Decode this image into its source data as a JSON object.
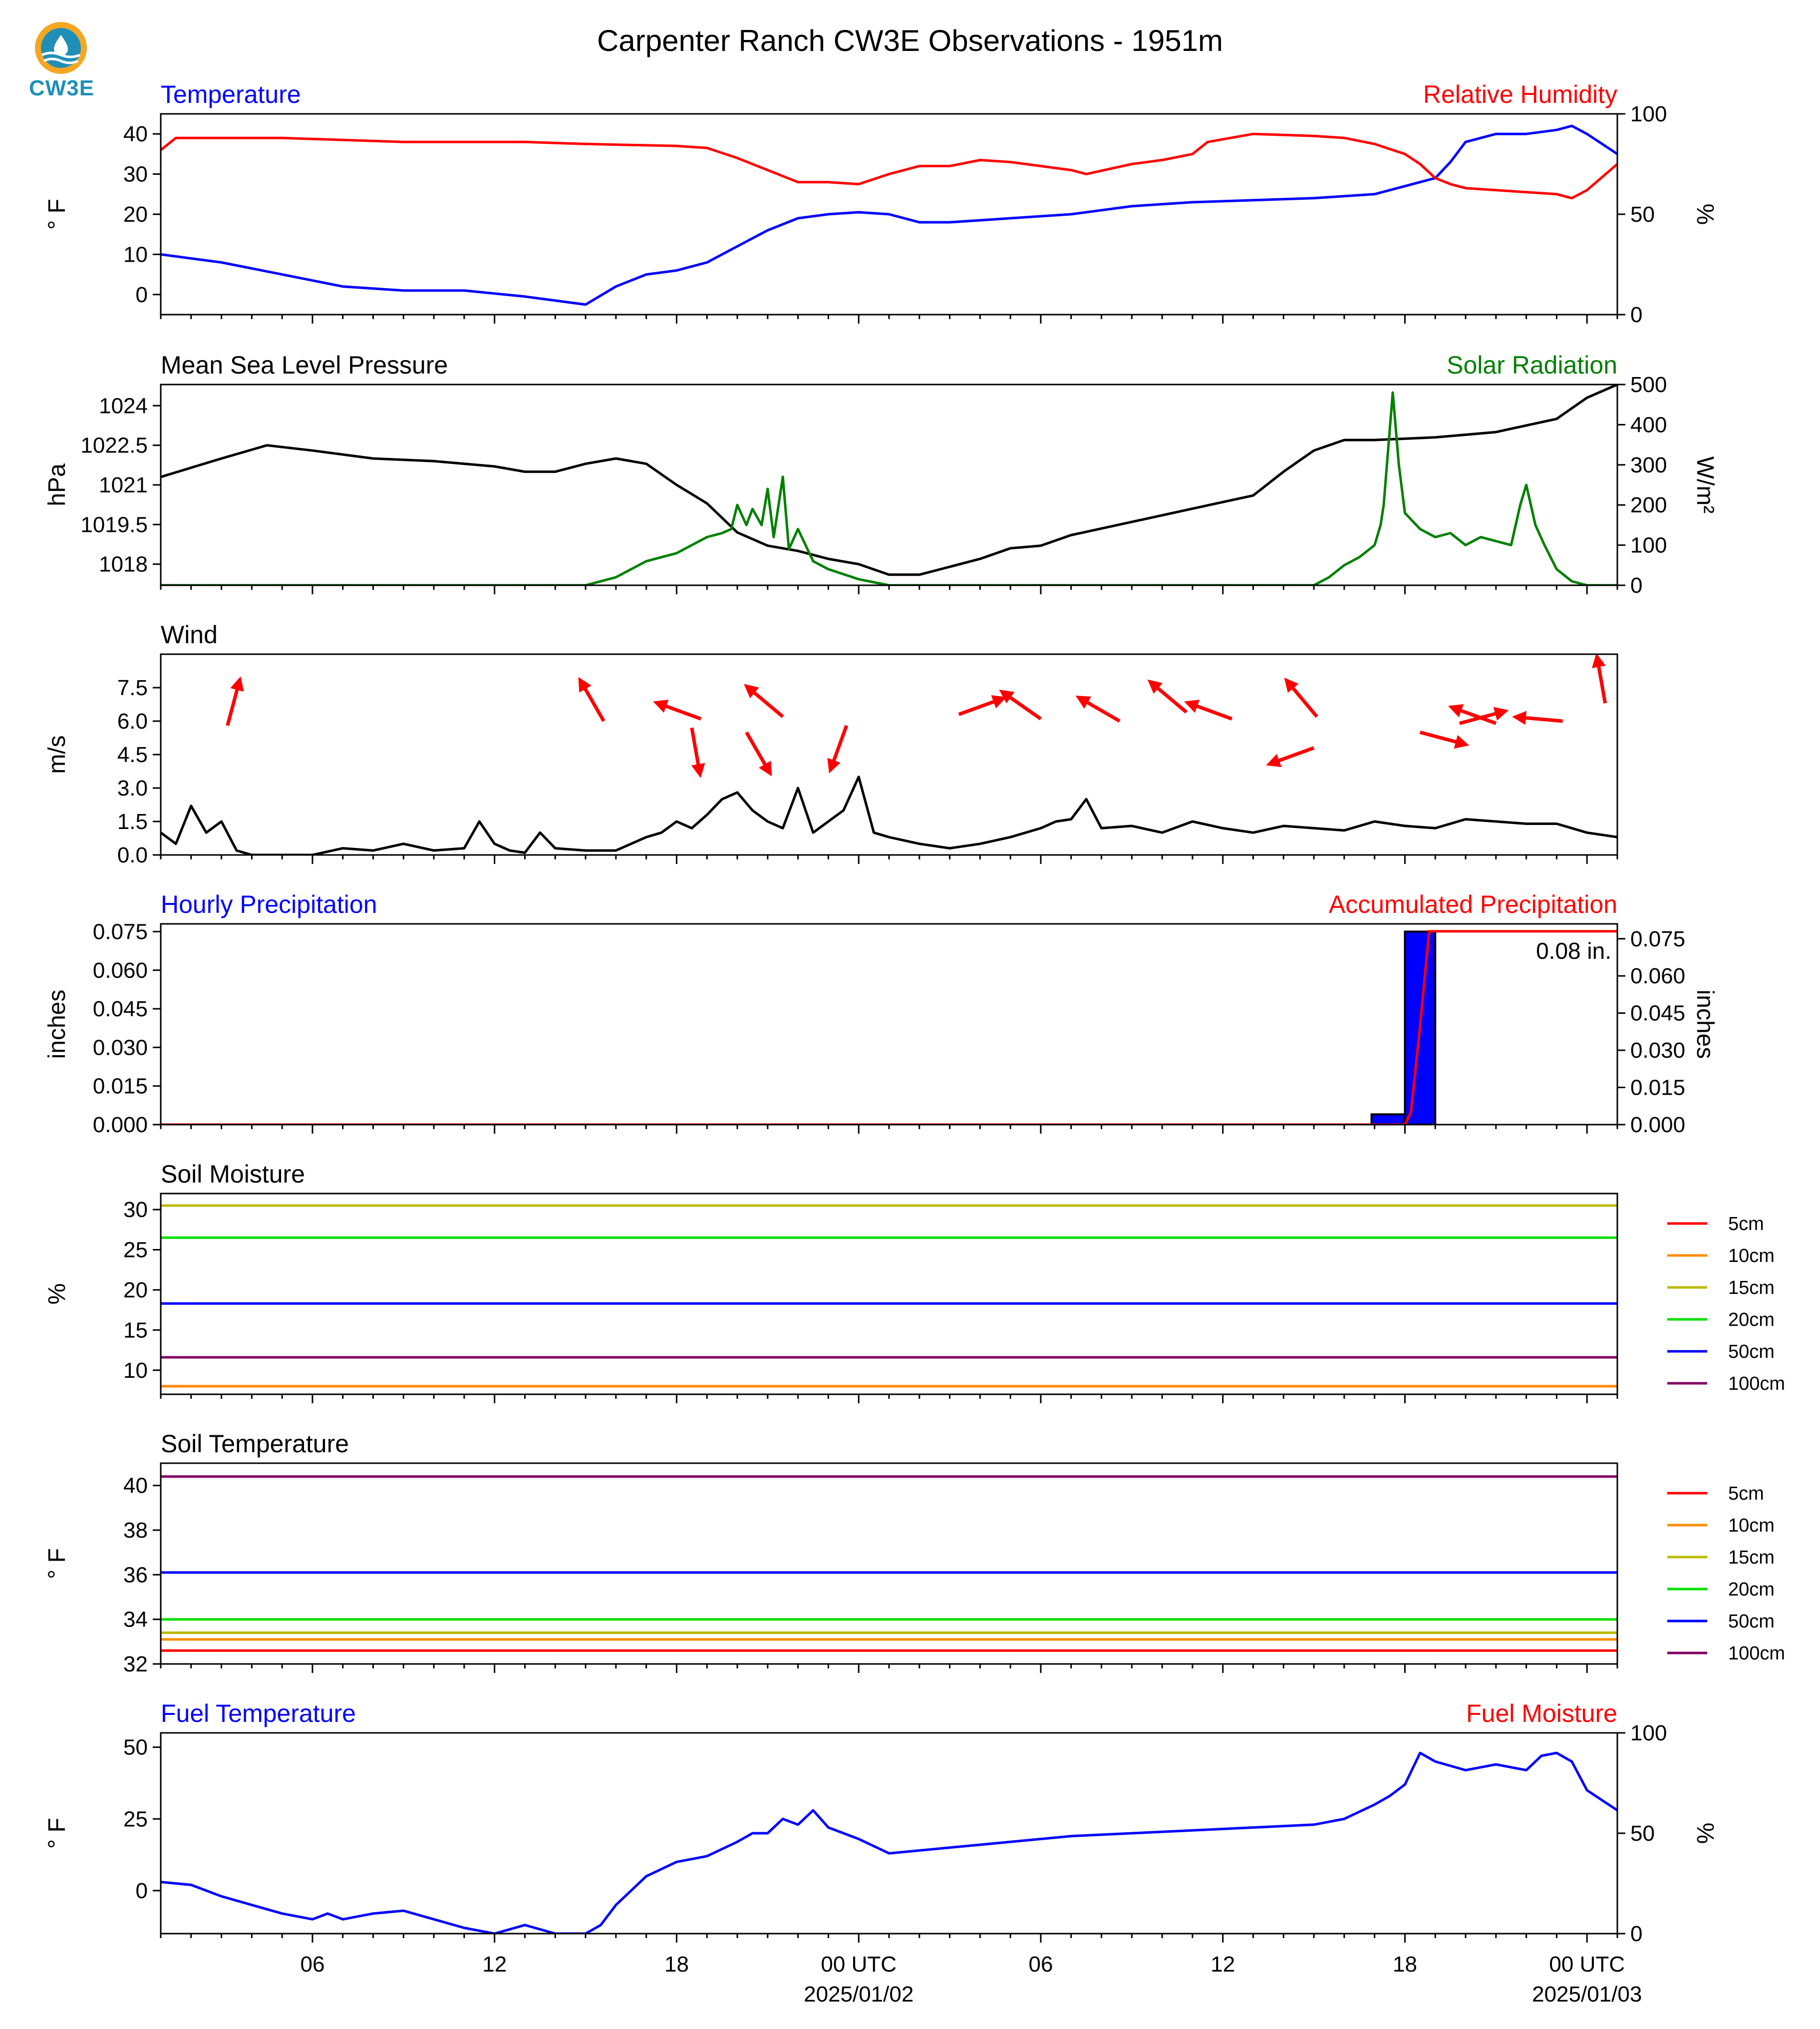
{
  "logo": {
    "text": "CW3E",
    "color": "#1f8fb8",
    "ring_color": "#f5a623"
  },
  "chart_data": [
    {
      "id": "temp-rh",
      "type": "line",
      "title": "Carpenter Ranch CW3E Observations - 1951m",
      "left_title": "Temperature",
      "left_title_color": "#0000ff",
      "right_title": "Relative Humidity",
      "right_title_color": "#ff0000",
      "ylabel_left": "° F",
      "ylabel_right": "%",
      "ylim_left": [
        -5,
        45
      ],
      "ylim_right": [
        0,
        100
      ],
      "yticks_left": [
        0,
        10,
        20,
        30,
        40
      ],
      "yticks_right": [
        0,
        50,
        100
      ],
      "series": [
        {
          "axis": "left",
          "color": "#0000ff",
          "x": [
            0,
            2,
            4,
            6,
            8,
            10,
            12,
            13.5,
            14,
            15,
            16,
            17,
            18,
            19,
            20,
            21,
            22,
            23,
            24,
            25,
            26,
            27,
            28,
            30,
            32,
            34,
            36,
            38,
            40,
            42,
            42.5,
            43,
            44,
            45,
            46,
            46.5,
            47,
            48
          ],
          "y": [
            10,
            8,
            5,
            2,
            1,
            1,
            -0.5,
            -2,
            -2.5,
            2,
            5,
            6,
            8,
            12,
            16,
            19,
            20,
            20.5,
            20,
            18,
            18,
            18.5,
            19,
            20,
            22,
            23,
            23.5,
            24,
            25,
            29,
            33,
            38,
            40,
            40,
            41,
            42,
            40,
            35
          ]
        },
        {
          "axis": "right",
          "color": "#ff0000",
          "x": [
            0,
            0.5,
            2,
            4,
            6,
            8,
            10,
            12,
            14,
            17,
            18,
            19,
            20,
            21,
            22,
            23,
            24,
            25,
            26,
            27,
            28,
            30,
            30.5,
            32,
            33,
            34,
            34.5,
            36,
            38,
            39,
            40,
            41,
            41.5,
            42,
            42.5,
            43,
            44,
            45,
            46,
            46.5,
            47,
            48
          ],
          "y": [
            82,
            88,
            88,
            88,
            87,
            86,
            86,
            86,
            85,
            84,
            83,
            78,
            72,
            66,
            66,
            65,
            70,
            74,
            74,
            77,
            76,
            72,
            70,
            75,
            77,
            80,
            86,
            90,
            89,
            88,
            85,
            80,
            75,
            68,
            65,
            63,
            62,
            61,
            60,
            58,
            62,
            75
          ]
        }
      ]
    },
    {
      "id": "pressure-solar",
      "type": "line",
      "left_title": "Mean Sea Level Pressure",
      "left_title_color": "#000000",
      "right_title": "Solar Radiation",
      "right_title_color": "#008000",
      "ylabel_left": "hPa",
      "ylabel_right": "W/m²",
      "ylim_left": [
        1017.2,
        1024.8
      ],
      "ylim_right": [
        0,
        500
      ],
      "yticks_left": [
        1018.0,
        1019.5,
        1021.0,
        1022.5,
        1024.0
      ],
      "yticks_right": [
        0,
        100,
        200,
        300,
        400,
        500
      ],
      "series": [
        {
          "axis": "left",
          "color": "#000000",
          "x": [
            0,
            2,
            3.5,
            5,
            7,
            9,
            11,
            12,
            13,
            14,
            15,
            16,
            17,
            18,
            19,
            20,
            21,
            22,
            23,
            24,
            25,
            26,
            27,
            28,
            29,
            30,
            32,
            34,
            36,
            37,
            38,
            39,
            40,
            42,
            44,
            46,
            47,
            48
          ],
          "y": [
            1021.3,
            1022.0,
            1022.5,
            1022.3,
            1022.0,
            1021.9,
            1021.7,
            1021.5,
            1021.5,
            1021.8,
            1022.0,
            1021.8,
            1021.0,
            1020.3,
            1019.2,
            1018.7,
            1018.5,
            1018.2,
            1018.0,
            1017.6,
            1017.6,
            1017.9,
            1018.2,
            1018.6,
            1018.7,
            1019.1,
            1019.6,
            1020.1,
            1020.6,
            1021.5,
            1022.3,
            1022.7,
            1022.7,
            1022.8,
            1023.0,
            1023.5,
            1024.3,
            1024.8
          ]
        },
        {
          "axis": "right",
          "color": "#008000",
          "x": [
            0,
            13,
            14,
            15,
            16,
            17,
            17.5,
            18,
            18.5,
            18.8,
            19,
            19.3,
            19.5,
            19.8,
            20,
            20.2,
            20.5,
            20.7,
            21,
            21.5,
            22,
            23,
            24,
            38,
            38.5,
            39,
            39.5,
            40,
            40.2,
            40.3,
            40.6,
            40.8,
            41,
            41.5,
            42,
            42.5,
            43,
            43.5,
            44,
            44.5,
            44.8,
            45,
            45.3,
            45.6,
            46,
            46.5,
            47,
            48
          ],
          "y": [
            0,
            0,
            0,
            20,
            60,
            80,
            100,
            120,
            130,
            140,
            200,
            150,
            190,
            150,
            240,
            120,
            270,
            90,
            140,
            60,
            40,
            15,
            0,
            0,
            20,
            50,
            70,
            100,
            150,
            200,
            480,
            300,
            180,
            140,
            120,
            130,
            100,
            120,
            110,
            100,
            200,
            250,
            150,
            100,
            40,
            10,
            0,
            0
          ]
        }
      ]
    },
    {
      "id": "wind",
      "type": "line",
      "left_title": "Wind",
      "left_title_color": "#000000",
      "ylabel_left": "m/s",
      "ylim_left": [
        0,
        9
      ],
      "yticks_left": [
        0.0,
        1.5,
        3.0,
        4.5,
        6.0,
        7.5
      ],
      "yticks_labels": [
        "0.0",
        "1.5",
        "3.0",
        "4.5",
        "6.0",
        "7.5"
      ],
      "series": [
        {
          "axis": "left",
          "color": "#000000",
          "x": [
            0,
            0.5,
            1,
            1.5,
            2,
            2.5,
            3,
            3.5,
            4,
            5,
            6,
            7,
            8,
            9,
            10,
            10.5,
            11,
            11.5,
            12,
            12.5,
            13,
            14,
            15,
            16,
            16.5,
            17,
            17.5,
            18,
            18.5,
            19,
            19.5,
            20,
            20.5,
            21,
            21.5,
            22,
            22.5,
            23,
            23.5,
            24,
            25,
            26,
            27,
            28,
            29,
            29.5,
            30,
            30.5,
            31,
            32,
            33,
            34,
            35,
            36,
            37,
            38,
            39,
            40,
            41,
            42,
            43,
            44,
            45,
            46,
            47,
            48
          ],
          "y": [
            1.0,
            0.5,
            2.2,
            1.0,
            1.5,
            0.2,
            0,
            0,
            0,
            0,
            0.3,
            0.2,
            0.5,
            0.2,
            0.3,
            1.5,
            0.5,
            0.2,
            0.1,
            1.0,
            0.3,
            0.2,
            0.2,
            0.8,
            1.0,
            1.5,
            1.2,
            1.8,
            2.5,
            2.8,
            2.0,
            1.5,
            1.2,
            3.0,
            1.0,
            1.5,
            2.0,
            3.5,
            1.0,
            0.8,
            0.5,
            0.3,
            0.5,
            0.8,
            1.2,
            1.5,
            1.6,
            2.5,
            1.2,
            1.3,
            1.0,
            1.5,
            1.2,
            1.0,
            1.3,
            1.2,
            1.1,
            1.5,
            1.3,
            1.2,
            1.6,
            1.5,
            1.4,
            1.4,
            1.0,
            0.8
          ]
        }
      ],
      "arrows": [
        {
          "x": 2.2,
          "y": 5.8,
          "dir": 75
        },
        {
          "x": 14.6,
          "y": 6.0,
          "dir": 120
        },
        {
          "x": 17.8,
          "y": 6.1,
          "dir": 160
        },
        {
          "x": 17.5,
          "y": 5.7,
          "dir": -80
        },
        {
          "x": 19.3,
          "y": 5.5,
          "dir": -60
        },
        {
          "x": 20.5,
          "y": 6.2,
          "dir": 140
        },
        {
          "x": 22.6,
          "y": 5.8,
          "dir": -110
        },
        {
          "x": 26.3,
          "y": 6.3,
          "dir": 20
        },
        {
          "x": 29.0,
          "y": 6.1,
          "dir": 145
        },
        {
          "x": 31.6,
          "y": 6.0,
          "dir": 150
        },
        {
          "x": 33.8,
          "y": 6.4,
          "dir": 140
        },
        {
          "x": 35.3,
          "y": 6.1,
          "dir": 160
        },
        {
          "x": 38.1,
          "y": 6.2,
          "dir": 130
        },
        {
          "x": 41.5,
          "y": 5.5,
          "dir": -15
        },
        {
          "x": 44.0,
          "y": 5.9,
          "dir": 160
        },
        {
          "x": 46.2,
          "y": 6.0,
          "dir": 175
        },
        {
          "x": 47.6,
          "y": 6.8,
          "dir": 100
        },
        {
          "x": 38.0,
          "y": 4.8,
          "dir": -160
        },
        {
          "x": 42.8,
          "y": 5.9,
          "dir": 15
        }
      ]
    },
    {
      "id": "precip",
      "type": "bar",
      "left_title": "Hourly Precipitation",
      "left_title_color": "#0000ff",
      "right_title": "Accumulated Precipitation",
      "right_title_color": "#ff0000",
      "ylabel_left": "inches",
      "ylabel_right": "inches",
      "ylim_left": [
        0,
        0.078
      ],
      "ylim_right": [
        0,
        0.081
      ],
      "yticks_left": [
        0.0,
        0.015,
        0.03,
        0.045,
        0.06,
        0.075
      ],
      "yticks_right": [
        0.0,
        0.015,
        0.03,
        0.045,
        0.06,
        0.075
      ],
      "yticks_labels": [
        "0.000",
        "0.015",
        "0.030",
        "0.045",
        "0.060",
        "0.075"
      ],
      "bars": [
        {
          "x0": 39.9,
          "x1": 41.0,
          "value": 0.004
        },
        {
          "x0": 41.0,
          "x1": 42.0,
          "value": 0.075
        }
      ],
      "bar_color": "#0000ff",
      "accum_series": {
        "color": "#ff0000",
        "x": [
          0,
          41.0,
          41.2,
          41.5,
          41.8,
          42.0,
          48.0
        ],
        "y": [
          0,
          0,
          0.005,
          0.04,
          0.078,
          0.078,
          0.078
        ]
      },
      "annotation": "0.08 in."
    },
    {
      "id": "soil-moisture",
      "type": "line",
      "left_title": "Soil Moisture",
      "left_title_color": "#000000",
      "ylabel_left": "%",
      "ylim_left": [
        7,
        32
      ],
      "yticks_left": [
        10,
        15,
        20,
        25,
        30
      ],
      "series": [
        {
          "name": "5cm",
          "color": "#ff0000",
          "x": [
            0,
            48
          ],
          "y": [
            8.0,
            8.0
          ]
        },
        {
          "name": "10cm",
          "color": "#ff8c00",
          "x": [
            0,
            48
          ],
          "y": [
            8.0,
            8.0
          ]
        },
        {
          "name": "15cm",
          "color": "#bbbb00",
          "x": [
            0,
            48
          ],
          "y": [
            30.5,
            30.5
          ]
        },
        {
          "name": "20cm",
          "color": "#00e000",
          "x": [
            0,
            48
          ],
          "y": [
            26.5,
            26.5
          ]
        },
        {
          "name": "50cm",
          "color": "#0000ff",
          "x": [
            0,
            48
          ],
          "y": [
            18.3,
            18.3
          ]
        },
        {
          "name": "100cm",
          "color": "#800060",
          "x": [
            0,
            48
          ],
          "y": [
            11.6,
            11.6
          ]
        }
      ]
    },
    {
      "id": "soil-temperature",
      "type": "line",
      "left_title": "Soil Temperature",
      "left_title_color": "#000000",
      "ylabel_left": "° F",
      "ylim_left": [
        32,
        41
      ],
      "yticks_left": [
        32,
        34,
        36,
        38,
        40
      ],
      "series": [
        {
          "name": "5cm",
          "color": "#ff0000",
          "x": [
            0,
            48
          ],
          "y": [
            32.6,
            32.6
          ]
        },
        {
          "name": "10cm",
          "color": "#ff8c00",
          "x": [
            0,
            48
          ],
          "y": [
            33.1,
            33.1
          ]
        },
        {
          "name": "15cm",
          "color": "#bbbb00",
          "x": [
            0,
            48
          ],
          "y": [
            33.4,
            33.4
          ]
        },
        {
          "name": "20cm",
          "color": "#00e000",
          "x": [
            0,
            48
          ],
          "y": [
            34.0,
            34.0
          ]
        },
        {
          "name": "50cm",
          "color": "#0000ff",
          "x": [
            0,
            48
          ],
          "y": [
            36.1,
            36.1
          ]
        },
        {
          "name": "100cm",
          "color": "#800060",
          "x": [
            0,
            48
          ],
          "y": [
            40.4,
            40.4
          ]
        }
      ]
    },
    {
      "id": "fuel",
      "type": "line",
      "left_title": "Fuel Temperature",
      "left_title_color": "#0000ff",
      "right_title": "Fuel Moisture",
      "right_title_color": "#ff0000",
      "ylabel_left": "° F",
      "ylabel_right": "%",
      "ylim_left": [
        -15,
        55
      ],
      "ylim_right": [
        0,
        100
      ],
      "yticks_left": [
        0,
        25,
        50
      ],
      "yticks_right": [
        0,
        50,
        100
      ],
      "series": [
        {
          "axis": "left",
          "color": "#0000ff",
          "x": [
            0,
            1,
            2,
            3,
            4,
            5,
            5.5,
            6,
            7,
            8,
            9,
            10,
            11,
            12,
            13,
            14,
            14.5,
            15,
            16,
            17,
            18,
            19,
            19.5,
            20,
            20.5,
            21,
            21.5,
            22,
            23,
            24,
            25,
            26,
            27,
            28,
            29,
            30,
            32,
            34,
            36,
            38,
            39,
            40,
            40.5,
            41,
            41.5,
            42,
            43,
            44,
            45,
            45.5,
            46,
            46.5,
            47,
            48
          ],
          "y": [
            3,
            2,
            -2,
            -5,
            -8,
            -10,
            -8,
            -10,
            -8,
            -7,
            -10,
            -13,
            -15,
            -12,
            -15,
            -15,
            -12,
            -5,
            5,
            10,
            12,
            17,
            20,
            20,
            25,
            23,
            28,
            22,
            18,
            13,
            14,
            15,
            16,
            17,
            18,
            19,
            20,
            21,
            22,
            23,
            25,
            30,
            33,
            37,
            48,
            45,
            42,
            44,
            42,
            47,
            48,
            45,
            35,
            28
          ]
        }
      ],
      "xticks": {
        "positions": [
          5,
          11,
          17,
          23,
          29,
          35,
          41,
          47
        ],
        "labels": [
          "06",
          "12",
          "18",
          "00 UTC",
          "06",
          "12",
          "18",
          "00 UTC"
        ],
        "dates": [
          "2025/01/02",
          "2025/01/03"
        ],
        "date_positions": [
          23,
          47
        ]
      }
    }
  ],
  "legend_labels": [
    "5cm",
    "10cm",
    "15cm",
    "20cm",
    "50cm",
    "100cm"
  ]
}
